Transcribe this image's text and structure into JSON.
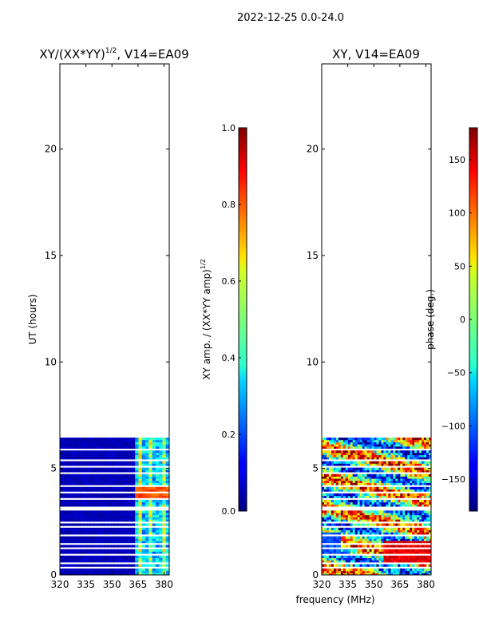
{
  "suptitle": "2022-12-25 0.0-24.0",
  "chart_data": [
    {
      "type": "heatmap",
      "title_main": "XY/(XX*YY)",
      "title_sup": "1/2",
      "title_tail": ", V14=EA09",
      "ylabel": "UT (hours)",
      "xlim": [
        320,
        383
      ],
      "ylim": [
        0,
        24
      ],
      "xticks": [
        "320",
        "335",
        "350",
        "365",
        "380"
      ],
      "yticks": [
        "0",
        "5",
        "10",
        "15",
        "20"
      ],
      "data_hours": [
        0,
        6.45
      ],
      "colorbar": {
        "label_main": "XY amp. / (XX*YY amp)",
        "label_sup": "1/2",
        "range": [
          0.0,
          1.0
        ],
        "ticks": [
          "0.0",
          "0.2",
          "0.4",
          "0.6",
          "0.8",
          "1.0"
        ]
      }
    },
    {
      "type": "heatmap",
      "title": "XY, V14=EA09",
      "xlabel": "frequency (MHz)",
      "xlim": [
        320,
        383
      ],
      "ylim": [
        0,
        24
      ],
      "xticks": [
        "320",
        "335",
        "350",
        "365",
        "380"
      ],
      "yticks": [
        "0",
        "5",
        "10",
        "15",
        "20"
      ],
      "data_hours": [
        0,
        6.45
      ],
      "colorbar": {
        "label": "phase (deg.)",
        "range": [
          -180,
          180
        ],
        "ticks": [
          "-150",
          "-100",
          "-50",
          "0",
          "50",
          "100",
          "150"
        ]
      }
    }
  ],
  "colors": {
    "axes": "#000000",
    "background": "#ffffff",
    "cmap": "jet"
  }
}
